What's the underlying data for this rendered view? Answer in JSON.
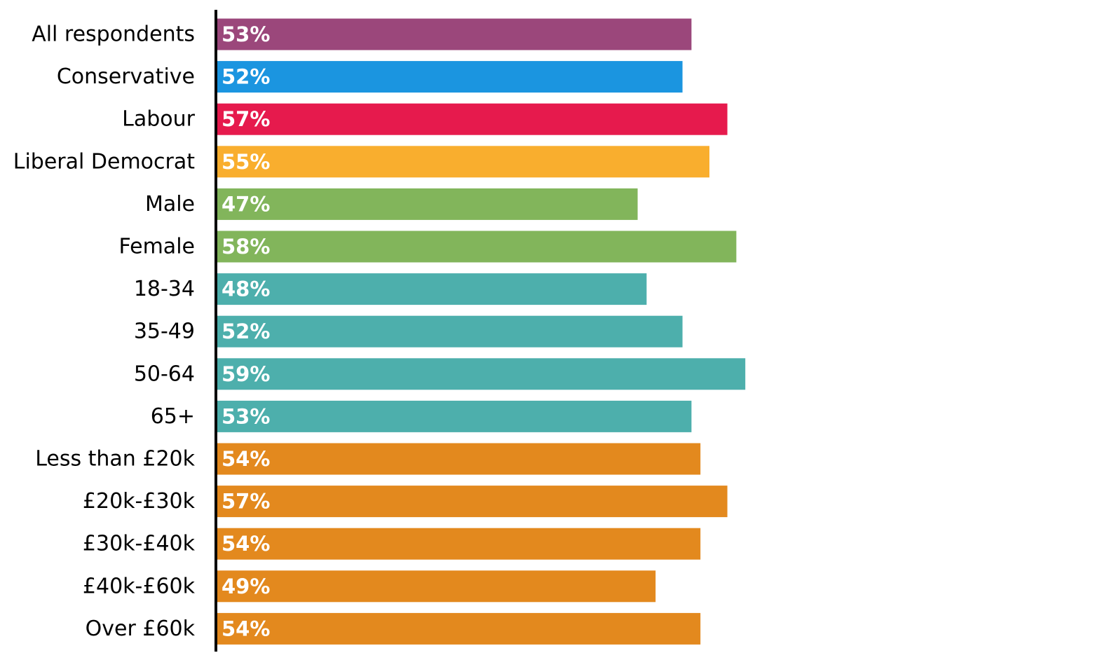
{
  "chart_data": {
    "type": "bar",
    "orientation": "horizontal",
    "categories": [
      "All respondents",
      "Conservative",
      "Labour",
      "Liberal Democrat",
      "Male",
      "Female",
      "18-34",
      "35-49",
      "50-64",
      "65+",
      "Less than £20k",
      "£20k-£30k",
      "£30k-£40k",
      "£40k-£60k",
      "Over £60k"
    ],
    "values": [
      53,
      52,
      57,
      55,
      47,
      58,
      48,
      52,
      59,
      53,
      54,
      57,
      54,
      49,
      54
    ],
    "value_labels": [
      "53%",
      "52%",
      "57%",
      "55%",
      "47%",
      "58%",
      "48%",
      "52%",
      "59%",
      "53%",
      "54%",
      "57%",
      "54%",
      "49%",
      "54%"
    ],
    "bar_colors": [
      "#9b477b",
      "#1b95e0",
      "#e61a4d",
      "#f9ae2e",
      "#82b55b",
      "#82b55b",
      "#4dafac",
      "#4dafac",
      "#4dafac",
      "#4dafac",
      "#e3891e",
      "#e3891e",
      "#e3891e",
      "#e3891e",
      "#e3891e"
    ],
    "xlim": [
      0,
      100
    ],
    "grid": false,
    "axis_color": "#000000",
    "title": "",
    "xlabel": "",
    "ylabel": ""
  }
}
